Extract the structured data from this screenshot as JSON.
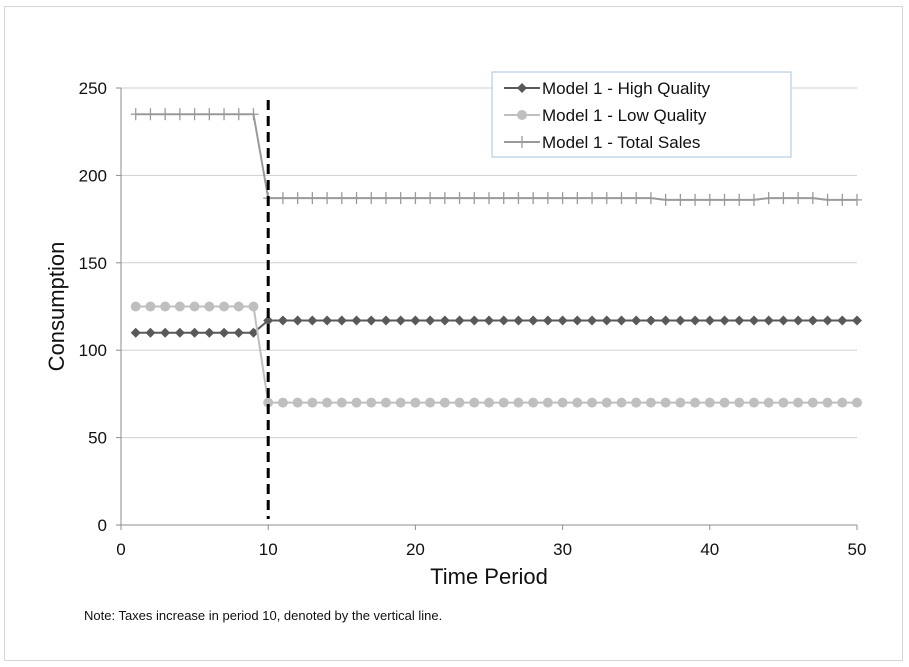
{
  "chart_data": {
    "type": "line",
    "xlabel": "Time Period",
    "ylabel": "Consumption",
    "xlim": [
      0,
      50
    ],
    "ylim": [
      0,
      250
    ],
    "xticks": [
      0,
      10,
      20,
      30,
      40,
      50
    ],
    "yticks": [
      0,
      50,
      100,
      150,
      200,
      250
    ],
    "grid": "horizontal",
    "legend_position": "top-right",
    "event_line": {
      "x": 10,
      "style": "dashed",
      "color": "#000000"
    },
    "series": [
      {
        "name": "Model 1 - High Quality",
        "marker": "diamond",
        "color": "#595959",
        "x": [
          1,
          2,
          3,
          4,
          5,
          6,
          7,
          8,
          9,
          10,
          11,
          12,
          13,
          14,
          15,
          16,
          17,
          18,
          19,
          20,
          21,
          22,
          23,
          24,
          25,
          26,
          27,
          28,
          29,
          30,
          31,
          32,
          33,
          34,
          35,
          36,
          37,
          38,
          39,
          40,
          41,
          42,
          43,
          44,
          45,
          46,
          47,
          48,
          49,
          50
        ],
        "values": [
          110,
          110,
          110,
          110,
          110,
          110,
          110,
          110,
          110,
          117,
          117,
          117,
          117,
          117,
          117,
          117,
          117,
          117,
          117,
          117,
          117,
          117,
          117,
          117,
          117,
          117,
          117,
          117,
          117,
          117,
          117,
          117,
          117,
          117,
          117,
          117,
          117,
          117,
          117,
          117,
          117,
          117,
          117,
          117,
          117,
          117,
          117,
          117,
          117,
          117
        ]
      },
      {
        "name": "Model 1 - Low Quality",
        "marker": "circle",
        "color": "#bfbfbf",
        "x": [
          1,
          2,
          3,
          4,
          5,
          6,
          7,
          8,
          9,
          10,
          11,
          12,
          13,
          14,
          15,
          16,
          17,
          18,
          19,
          20,
          21,
          22,
          23,
          24,
          25,
          26,
          27,
          28,
          29,
          30,
          31,
          32,
          33,
          34,
          35,
          36,
          37,
          38,
          39,
          40,
          41,
          42,
          43,
          44,
          45,
          46,
          47,
          48,
          49,
          50
        ],
        "values": [
          125,
          125,
          125,
          125,
          125,
          125,
          125,
          125,
          125,
          70,
          70,
          70,
          70,
          70,
          70,
          70,
          70,
          70,
          70,
          70,
          70,
          70,
          70,
          70,
          70,
          70,
          70,
          70,
          70,
          70,
          70,
          70,
          70,
          70,
          70,
          70,
          70,
          70,
          70,
          70,
          70,
          70,
          70,
          70,
          70,
          70,
          70,
          70,
          70,
          70
        ]
      },
      {
        "name": "Model 1 - Total Sales",
        "marker": "plus",
        "color": "#9a9a9a",
        "x": [
          1,
          2,
          3,
          4,
          5,
          6,
          7,
          8,
          9,
          10,
          11,
          12,
          13,
          14,
          15,
          16,
          17,
          18,
          19,
          20,
          21,
          22,
          23,
          24,
          25,
          26,
          27,
          28,
          29,
          30,
          31,
          32,
          33,
          34,
          35,
          36,
          37,
          38,
          39,
          40,
          41,
          42,
          43,
          44,
          45,
          46,
          47,
          48,
          49,
          50
        ],
        "values": [
          235,
          235,
          235,
          235,
          235,
          235,
          235,
          235,
          235,
          187,
          187,
          187,
          187,
          187,
          187,
          187,
          187,
          187,
          187,
          187,
          187,
          187,
          187,
          187,
          187,
          187,
          187,
          187,
          187,
          187,
          187,
          187,
          187,
          187,
          187,
          187,
          186,
          186,
          186,
          186,
          186,
          186,
          186,
          187,
          187,
          187,
          187,
          186,
          186,
          186
        ]
      }
    ]
  },
  "note": "Note: Taxes increase in period 10, denoted by the vertical line."
}
